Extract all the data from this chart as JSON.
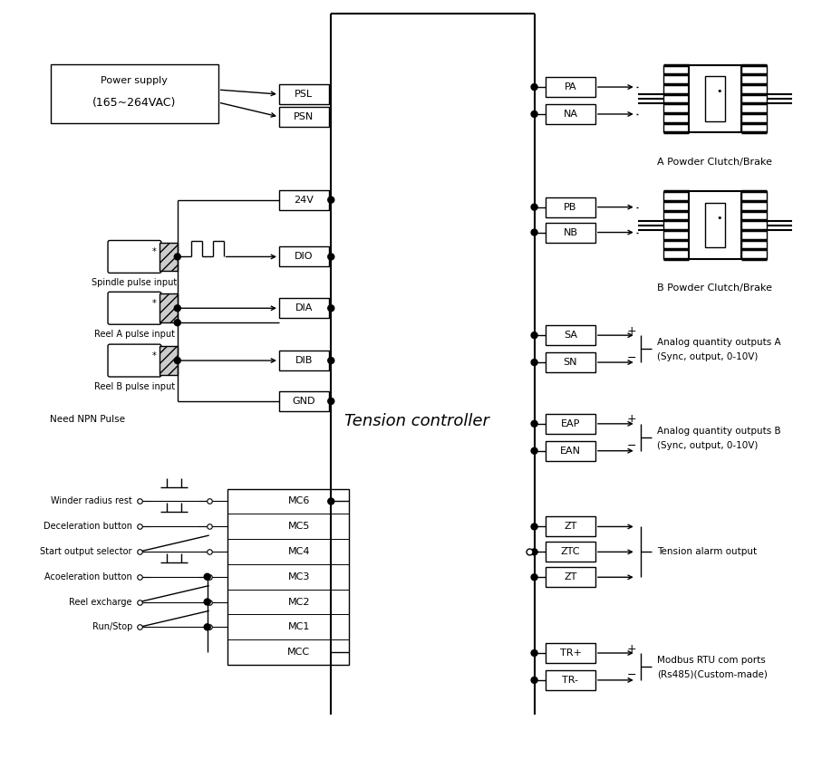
{
  "bg_color": "#ffffff",
  "line_color": "#000000",
  "fig_w": 9.07,
  "fig_h": 8.38,
  "dpi": 100,
  "tension_label": "Tension controller",
  "power_supply_label1": "Power supply",
  "power_supply_label2": "(165~264VAC)",
  "left_terminals": [
    "PSL",
    "PSN",
    "24V",
    "DIO",
    "DIA",
    "DIB",
    "GND"
  ],
  "mc_labels": [
    "MC6",
    "MC5",
    "MC4",
    "MC3",
    "MC2",
    "MC1",
    "MCC"
  ],
  "input_labels": [
    "Winder radius rest",
    "Deceleration button",
    "Start output selector",
    "Acoeleration button",
    "Reel excharge",
    "Run/Stop"
  ],
  "right_terminals": [
    "PA",
    "NA",
    "PB",
    "NB",
    "SA",
    "SN",
    "EAP",
    "EAN",
    "ZT",
    "ZTC",
    "ZT",
    "TR+",
    "TR-"
  ],
  "right_labels_A": [
    "Analog quantity outputs A",
    "(Sync, output, 0-10V)"
  ],
  "right_labels_B": [
    "Analog quantity outputs B",
    "(Sync, output, 0-10V)"
  ],
  "tension_alarm_label": "Tension alarm output",
  "modbus_labels": [
    "Modbus RTU com ports",
    "(Rs485)(Custom-made)"
  ],
  "clutch_a_label": "A Powder Clutch/Brake",
  "clutch_b_label": "B Powder Clutch/Brake"
}
